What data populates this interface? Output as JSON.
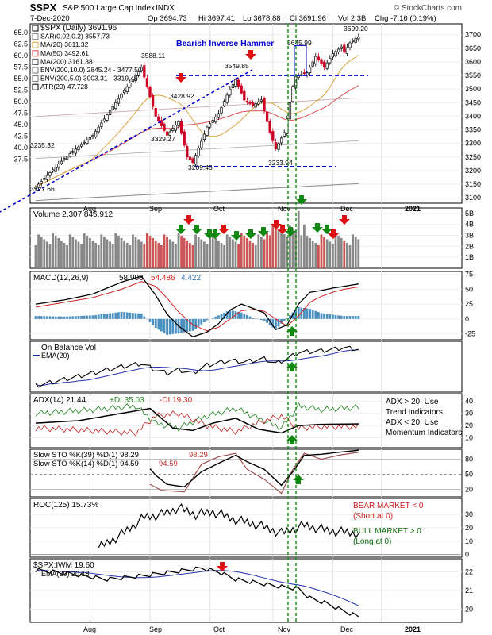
{
  "header": {
    "symbol": "$SPX",
    "name": "S&P 500 Large Cap Index",
    "exchange": "INDX",
    "date": "7-Dec-2020",
    "open": "Op 3694.73",
    "high": "Hi 3697.41",
    "low": "Lo 3678.88",
    "close": "Cl 3691.96",
    "volume": "Vol 2.3B",
    "change": "Chg -7.16 (0.19%)",
    "brand": "© StockCharts.com"
  },
  "colors": {
    "up": "#000000",
    "down": "#cc0022",
    "ma20": "#d9a441",
    "ma50": "#e05050",
    "ma200": "#888888",
    "annot": "#0000cc",
    "greenArrow": "#118811",
    "redArrow": "#dd1111"
  },
  "chart_data": [
    {
      "type": "candlestick",
      "title": "$SPX (Daily) 3691.96",
      "ylim": [
        3080,
        3740
      ],
      "yticks": [
        3100,
        3150,
        3200,
        3250,
        3300,
        3350,
        3400,
        3450,
        3500,
        3550,
        3600,
        3650,
        3700
      ],
      "left_ticks": [
        "65.0",
        "62.5",
        "60.0",
        "57.5",
        "55.0",
        "52.5",
        "50.0",
        "47.5",
        "45.0",
        "42.5",
        "40.0",
        "37.5"
      ],
      "xlabels": [
        "Aug",
        "Sep",
        "Oct",
        "Nov",
        "Dec",
        "2021"
      ],
      "legend": [
        "$SPX (Daily) 3691.96",
        "SAR(0.02,0.2) 3557.73",
        "MA(20) 3611.32",
        "MA(50) 3492.61",
        "MA(200) 3161.38",
        "ENV(200,10.0) 2845.24 - 3477.52",
        "ENV(200,5.0) 3003.31 - 3319.45",
        "ATR(20) 47.728"
      ],
      "annotations": [
        "Bearish Inverse Hammer",
        "3588.11",
        "3428.92",
        "3329.27",
        "3209.45",
        "3549.85",
        "3645.99",
        "3699.20",
        "3233.94",
        "3235.32",
        "3127.66"
      ],
      "anchors": [
        {
          "x": 0,
          "y": 3140
        },
        {
          "x": 10,
          "y": 3245
        },
        {
          "x": 20,
          "y": 3330
        },
        {
          "x": 30,
          "y": 3480
        },
        {
          "x": 37,
          "y": 3580
        },
        {
          "x": 42,
          "y": 3400
        },
        {
          "x": 46,
          "y": 3330
        },
        {
          "x": 50,
          "y": 3380
        },
        {
          "x": 53,
          "y": 3250
        },
        {
          "x": 55,
          "y": 3230
        },
        {
          "x": 60,
          "y": 3360
        },
        {
          "x": 64,
          "y": 3410
        },
        {
          "x": 68,
          "y": 3500
        },
        {
          "x": 70,
          "y": 3535
        },
        {
          "x": 73,
          "y": 3460
        },
        {
          "x": 76,
          "y": 3440
        },
        {
          "x": 79,
          "y": 3460
        },
        {
          "x": 82,
          "y": 3340
        },
        {
          "x": 84,
          "y": 3280
        },
        {
          "x": 87,
          "y": 3340
        },
        {
          "x": 88,
          "y": 3390
        },
        {
          "x": 90,
          "y": 3510
        },
        {
          "x": 91,
          "y": 3545
        },
        {
          "x": 92,
          "y": 3550
        },
        {
          "x": 95,
          "y": 3560
        },
        {
          "x": 98,
          "y": 3620
        },
        {
          "x": 101,
          "y": 3580
        },
        {
          "x": 104,
          "y": 3630
        },
        {
          "x": 107,
          "y": 3655
        },
        {
          "x": 108,
          "y": 3635
        },
        {
          "x": 110,
          "y": 3670
        },
        {
          "x": 113,
          "y": 3695
        }
      ],
      "last": 3691.96
    },
    {
      "type": "bar",
      "title": "Volume 2,307,846,912",
      "ylim": [
        0,
        5.5
      ],
      "ytick_labels": [
        "5B",
        "4B",
        "3B",
        "2B",
        "1B"
      ],
      "yticks": [
        5,
        4,
        3,
        2,
        1
      ],
      "unit": "B"
    },
    {
      "type": "line",
      "title": "MACD(12,26,9)",
      "values_text": [
        "58.908",
        "54.486",
        "4.422"
      ],
      "ylim": [
        -35,
        80
      ],
      "yticks": [
        75,
        50,
        25,
        0,
        -25
      ],
      "ytick_labels": [
        "75",
        "50",
        "25",
        "0",
        "-25"
      ],
      "macd_anchors": [
        {
          "x": 0,
          "y": 25
        },
        {
          "x": 10,
          "y": 32
        },
        {
          "x": 20,
          "y": 42
        },
        {
          "x": 30,
          "y": 62
        },
        {
          "x": 37,
          "y": 72
        },
        {
          "x": 42,
          "y": 40
        },
        {
          "x": 46,
          "y": 8
        },
        {
          "x": 50,
          "y": -12
        },
        {
          "x": 55,
          "y": -30
        },
        {
          "x": 60,
          "y": -22
        },
        {
          "x": 64,
          "y": -8
        },
        {
          "x": 68,
          "y": 15
        },
        {
          "x": 72,
          "y": 25
        },
        {
          "x": 76,
          "y": 18
        },
        {
          "x": 80,
          "y": 10
        },
        {
          "x": 84,
          "y": -18
        },
        {
          "x": 88,
          "y": -10
        },
        {
          "x": 92,
          "y": 25
        },
        {
          "x": 96,
          "y": 45
        },
        {
          "x": 100,
          "y": 48
        },
        {
          "x": 104,
          "y": 52
        },
        {
          "x": 108,
          "y": 55
        },
        {
          "x": 113,
          "y": 59
        }
      ],
      "signal_anchors": [
        {
          "x": 0,
          "y": 20
        },
        {
          "x": 10,
          "y": 28
        },
        {
          "x": 20,
          "y": 36
        },
        {
          "x": 30,
          "y": 50
        },
        {
          "x": 37,
          "y": 63
        },
        {
          "x": 42,
          "y": 55
        },
        {
          "x": 46,
          "y": 35
        },
        {
          "x": 50,
          "y": 12
        },
        {
          "x": 55,
          "y": -10
        },
        {
          "x": 60,
          "y": -20
        },
        {
          "x": 64,
          "y": -14
        },
        {
          "x": 68,
          "y": 0
        },
        {
          "x": 72,
          "y": 14
        },
        {
          "x": 76,
          "y": 16
        },
        {
          "x": 80,
          "y": 13
        },
        {
          "x": 84,
          "y": 0
        },
        {
          "x": 88,
          "y": -12
        },
        {
          "x": 92,
          "y": 5
        },
        {
          "x": 96,
          "y": 28
        },
        {
          "x": 100,
          "y": 38
        },
        {
          "x": 104,
          "y": 45
        },
        {
          "x": 108,
          "y": 50
        },
        {
          "x": 113,
          "y": 54
        }
      ]
    },
    {
      "type": "line",
      "title": "On Balance Vol",
      "legend2": "EMA(20)"
    },
    {
      "type": "line",
      "title": "ADX(14) 21.44",
      "values_text": [
        "+DI 35.03",
        "-DI 19.30"
      ],
      "ylim": [
        2,
        46
      ],
      "yticks": [
        40,
        30,
        20,
        10
      ],
      "ytick_labels": [
        "40",
        "30",
        "20",
        "10"
      ],
      "note": [
        "ADX > 20: Use",
        "Trend Indicators,",
        "ADX < 20: Use",
        "Momentum Indicators"
      ]
    },
    {
      "type": "line",
      "title": "Slow STO %K(39) %D(1) 98.29",
      "value2": "98.29",
      "title2": "Slow STO %K(14) %D(1) 94.59",
      "value3": "94.59",
      "ylim": [
        5,
        100
      ],
      "yticks": [
        80,
        50,
        20
      ],
      "ytick_labels": [
        "80",
        "50",
        "20"
      ]
    },
    {
      "type": "line",
      "title": "ROC(125) 15.73%",
      "ylim": [
        -2,
        42
      ],
      "yticks": [
        30,
        20,
        10,
        0
      ],
      "ytick_labels": [
        "30",
        "20",
        "10",
        "0"
      ],
      "note_bear": [
        "BEAR MARKET < 0",
        "(Short at 0)"
      ],
      "note_bull": [
        "BULL MARKET > 0",
        "(Long at 0)"
      ]
    },
    {
      "type": "line",
      "title": "$SPX:IWM 19.60",
      "legend2": "EMA(20) 20.18",
      "ylim": [
        19.3,
        22.7
      ],
      "yticks": [
        22,
        21,
        20
      ],
      "ytick_labels": [
        "22",
        "21",
        "20"
      ]
    }
  ]
}
